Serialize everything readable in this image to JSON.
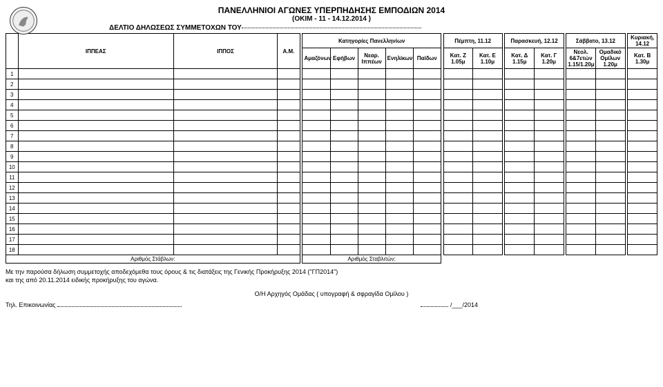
{
  "header": {
    "title": "ΠΑΝΕΛΛΗΝΙΟΙ ΑΓΩΝΕΣ ΥΠΕΡΠΗΔΗΣΗΣ ΕΜΠΟΔΙΩΝ 2014",
    "subtitle": "(OKIM - 11 - 14.12.2014 )",
    "form_title": "ΔΕΛΤΙΟ ΔΗΛΩΣΕΩΣ ΣΥΜΜΕΤΟΧΩΝ ΤΟΥ"
  },
  "columns": {
    "rider": "ΙΠΠΕΑΣ",
    "horse": "ΙΠΠΟΣ",
    "am": "Α.Μ.",
    "group_cat": "Κατηγορίες Πανελληνίων",
    "cat_amazon": "Αμαζόνων",
    "cat_efivon": "Εφήβων",
    "cat_nearip": "Νεαρ. Ιππέων",
    "cat_enilik": "Ενηλίκων",
    "cat_paidon": "Παίδων",
    "day_thu": "Πέμπτη, 11.12",
    "day_fri": "Παρασκευή, 12.12",
    "day_sat": "Σάββατο, 13.12",
    "day_sun": "Κυριακή, 14.12",
    "kat_z": "Κατ. Ζ 1.05μ",
    "kat_e": "Κατ. Ε 1.10μ",
    "kat_d": "Κατ. Δ 1.15μ",
    "kat_g": "Κατ. Γ 1.20μ",
    "kat_neol": "Νεολ. 6&7ετών 1.15/1.20μ",
    "kat_omad": "Ομαδικό Ομίλων 1.20μ",
    "kat_b": "Κατ. Β 1.30μ"
  },
  "rows": {
    "count": 18,
    "labels": [
      "1",
      "2",
      "3",
      "4",
      "5",
      "6",
      "7",
      "8",
      "9",
      "10",
      "11",
      "12",
      "13",
      "14",
      "15",
      "16",
      "17",
      "18"
    ]
  },
  "footer": {
    "stables_label": "Αριθμός Στάβλων:",
    "grooms_label": "Αριθμός Σταβλιτών:"
  },
  "notes": {
    "line1": "Με την παρούσα δήλωση συμμετοχής αποδεχόμεθα τους όρους & τις διατάξεις της Γενικής Προκήρυξης 2014 (\"ΓΠ2014\")",
    "line2": "και της από 20.11.2014 ειδικής προκήρυξης του αγώνα.",
    "sig_label": "Ο/Η Αρχηγός Ομάδας ( υπογραφή & σφραγίδα Ομίλου )",
    "tel_label": "Τηλ. Επικοινωνίας",
    "date_suffix": "/___/2014"
  }
}
